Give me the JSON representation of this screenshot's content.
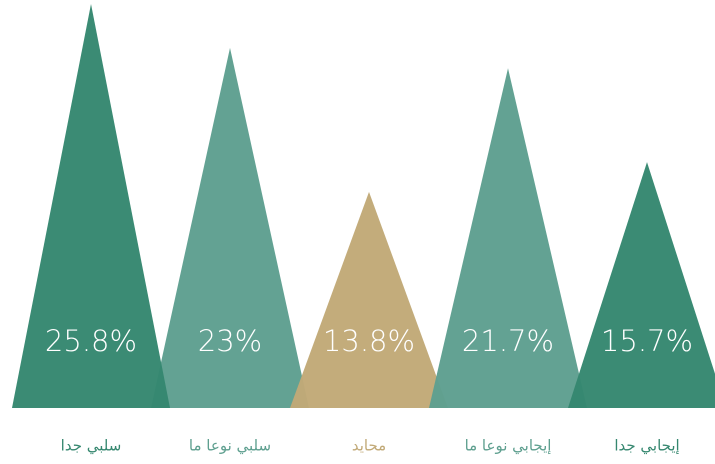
{
  "chart_data": {
    "type": "triangle",
    "categories": [
      "سلبي جدا",
      "سلبي نوعا ما",
      "محايد",
      "إيجابي نوعا ما",
      "إيجابي جدا"
    ],
    "values": [
      25.8,
      23,
      13.8,
      21.7,
      15.7
    ],
    "value_labels": [
      "25.8%",
      "23%",
      "13.8%",
      "21.7%",
      "15.7%"
    ],
    "colors": [
      "#35876f",
      "#5e9f8f",
      "#c1a977",
      "#5e9f8f",
      "#35876f"
    ]
  }
}
